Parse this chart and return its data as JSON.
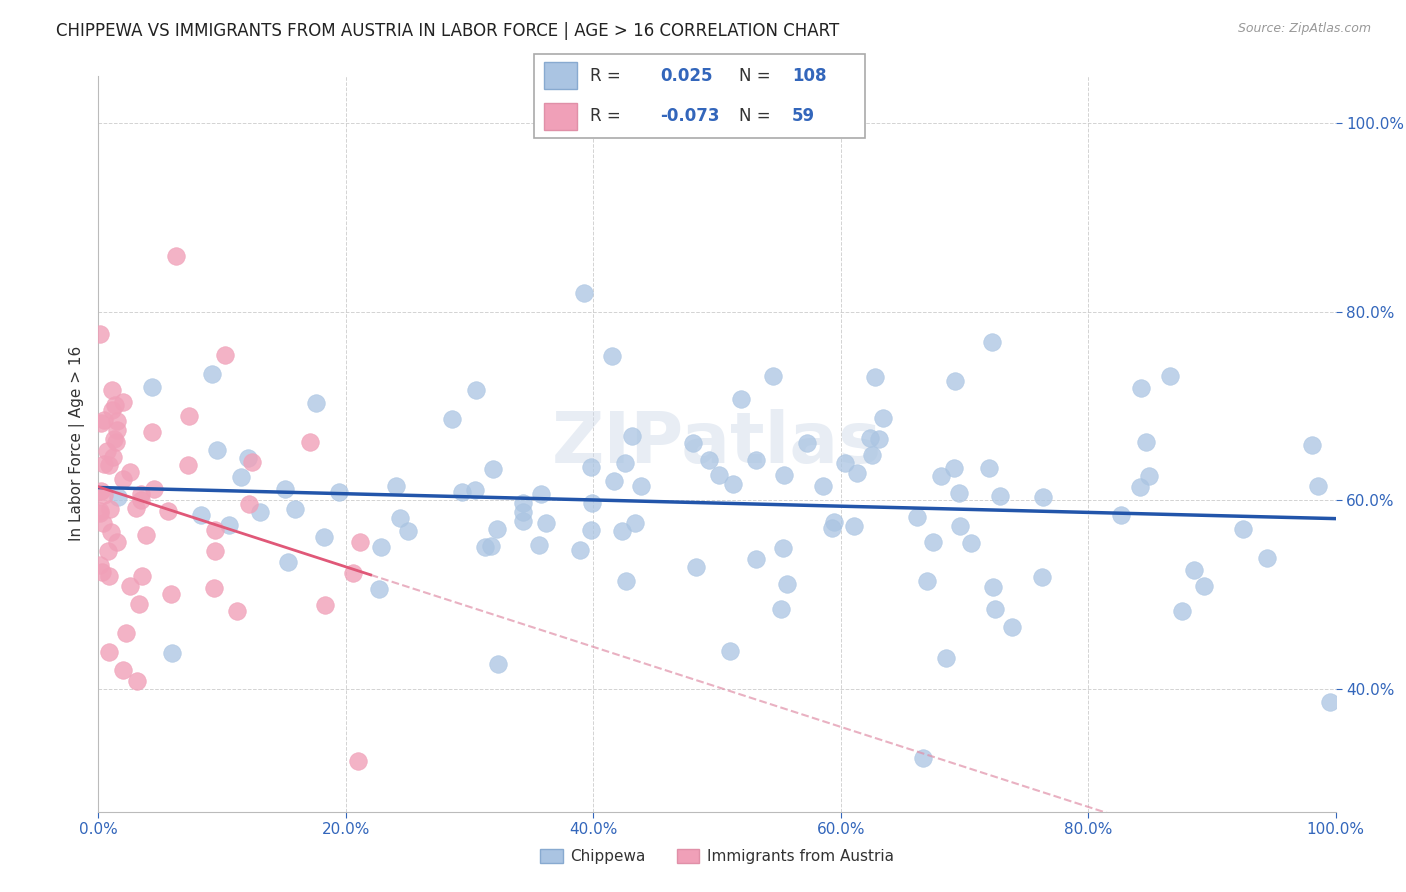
{
  "title": "CHIPPEWA VS IMMIGRANTS FROM AUSTRIA IN LABOR FORCE | AGE > 16 CORRELATION CHART",
  "source": "Source: ZipAtlas.com",
  "ylabel": "In Labor Force | Age > 16",
  "chippewa_R": 0.025,
  "chippewa_N": 108,
  "austria_R": -0.073,
  "austria_N": 59,
  "chippewa_color": "#aac4e2",
  "austria_color": "#f0a0b8",
  "chippewa_line_color": "#2255aa",
  "austria_line_color": "#e05878",
  "austria_line_color_dashed": "#e090a8",
  "watermark": "ZIPatlas",
  "xlim": [
    0,
    1
  ],
  "ylim": [
    0.27,
    1.05
  ],
  "xticks": [
    0.0,
    0.2,
    0.4,
    0.6,
    0.8,
    1.0
  ],
  "yticks": [
    0.4,
    0.6,
    0.8,
    1.0
  ],
  "title_fontsize": 12,
  "tick_fontsize": 11,
  "legend_label_1": "Chippewa",
  "legend_label_2": "Immigrants from Austria"
}
